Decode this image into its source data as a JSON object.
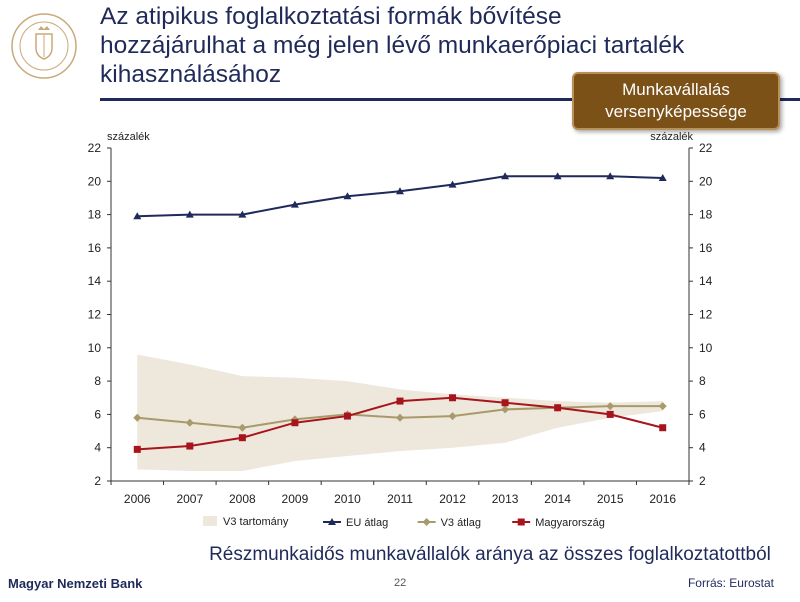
{
  "slide": {
    "title_lines": [
      "Az atipikus foglalkoztatási formák bővítése",
      "hozzájárulhat a még jelen lévő munkaerőpiaci tartalék",
      "kihasználásához"
    ],
    "badge_lines": [
      "Munkavállalás",
      "versenyképessége"
    ],
    "caption": "Részmunkaidős munkavállalók aránya az összes foglalkoztatottból",
    "bank_name": "Magyar Nemzeti Bank",
    "page_number": "22",
    "source": "Forrás: Eurostat",
    "logo_text": "MAGYAR NEMZETI BANK"
  },
  "chart_data": {
    "type": "line",
    "ylabel_left": "százalék",
    "ylabel_right": "százalék",
    "ylim": [
      2,
      22
    ],
    "yticks": [
      2,
      4,
      6,
      8,
      10,
      12,
      14,
      16,
      18,
      20,
      22
    ],
    "x": [
      "2006",
      "2007",
      "2008",
      "2009",
      "2010",
      "2011",
      "2012",
      "2013",
      "2014",
      "2015",
      "2016"
    ],
    "band": {
      "name": "V3 tartomány",
      "color": "#ede7dc",
      "lower": [
        2.7,
        2.6,
        2.6,
        3.2,
        3.5,
        3.8,
        4.0,
        4.3,
        5.2,
        5.8,
        6.2
      ],
      "upper": [
        9.6,
        9.0,
        8.3,
        8.2,
        8.0,
        7.5,
        7.2,
        7.0,
        6.8,
        6.7,
        6.8
      ]
    },
    "series": [
      {
        "name": "EU átlag",
        "color": "#1f2a5a",
        "marker": "triangle",
        "values": [
          17.9,
          18.0,
          18.0,
          18.6,
          19.1,
          19.4,
          19.8,
          20.3,
          20.3,
          20.3,
          20.2
        ]
      },
      {
        "name": "V3 átlag",
        "color": "#a89a6a",
        "marker": "diamond",
        "values": [
          5.8,
          5.5,
          5.2,
          5.7,
          6.0,
          5.8,
          5.9,
          6.3,
          6.4,
          6.5,
          6.5
        ]
      },
      {
        "name": "Magyarország",
        "color": "#a8141c",
        "marker": "square",
        "values": [
          3.9,
          4.1,
          4.6,
          5.5,
          5.9,
          6.8,
          7.0,
          6.7,
          6.4,
          6.0,
          5.2
        ]
      }
    ],
    "legend_position": "bottom",
    "grid": false
  }
}
